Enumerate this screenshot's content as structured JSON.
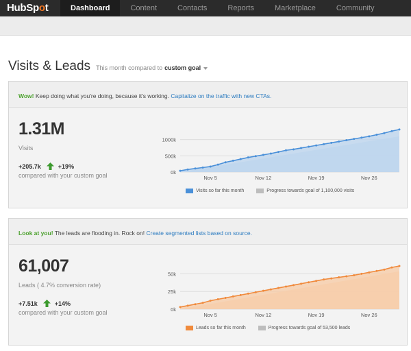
{
  "nav": {
    "logo_pre": "HubSp",
    "logo_o": "o",
    "logo_post": "t",
    "items": [
      {
        "label": "Dashboard",
        "active": true
      },
      {
        "label": "Content"
      },
      {
        "label": "Contacts"
      },
      {
        "label": "Reports"
      },
      {
        "label": "Marketplace"
      },
      {
        "label": "Community"
      }
    ]
  },
  "header": {
    "title": "Visits & Leads",
    "subtitle": "This month compared to",
    "goal": "custom goal"
  },
  "visits": {
    "banner_strong": "Wow!",
    "banner_text": " Keep doing what you're doing, because it's working. ",
    "banner_link": "Capitalize on the traffic with new CTAs.",
    "value": "1.31M",
    "label": "Visits",
    "delta_abs": "+205.7k",
    "delta_pct": "+19%",
    "compare": "compared with your custom goal",
    "legend_actual": "Visits so far this month",
    "legend_goal": "Progress towards goal of 1,100,000 visits"
  },
  "leads": {
    "banner_strong": "Look at you!",
    "banner_text": " The leads are flooding in. Rock on! ",
    "banner_link": "Create segmented lists based on source.",
    "value": "61,007",
    "label": "Leads ( 4.7% conversion rate)",
    "delta_abs": "+7.51k",
    "delta_pct": "+14%",
    "compare": "compared with your custom goal",
    "legend_actual": "Leads so far this month",
    "legend_goal": "Progress towards goal of 53,500 leads"
  },
  "colors": {
    "visits_line": "#4a90d9",
    "visits_fill": "#b9d3ee",
    "visits_goal_fill": "#cfdff0",
    "leads_line": "#f08a3c",
    "leads_fill": "#f7c9a3",
    "leads_goal_fill": "#f5dcc8",
    "goal_swatch": "#bdbdbd",
    "up_arrow": "#3c9a2e"
  },
  "chart_data": [
    {
      "type": "area",
      "series_name": "Visits so far this month",
      "x_ticks": [
        "Nov 5",
        "Nov 12",
        "Nov 19",
        "Nov 26"
      ],
      "y_ticks": [
        "0k",
        "500k",
        "1000k"
      ],
      "ylim": [
        0,
        1350000
      ],
      "x_days": [
        1,
        2,
        3,
        4,
        5,
        6,
        7,
        8,
        9,
        10,
        11,
        12,
        13,
        14,
        15,
        16,
        17,
        18,
        19,
        20,
        21,
        22,
        23,
        24,
        25,
        26,
        27,
        28,
        29,
        30
      ],
      "values": [
        40000,
        80000,
        110000,
        140000,
        170000,
        230000,
        300000,
        350000,
        400000,
        450000,
        490000,
        530000,
        570000,
        620000,
        670000,
        700000,
        740000,
        780000,
        820000,
        860000,
        900000,
        940000,
        980000,
        1020000,
        1060000,
        1100000,
        1150000,
        1200000,
        1260000,
        1310000
      ],
      "goal_start": 0,
      "goal_end": 1100000
    },
    {
      "type": "area",
      "series_name": "Leads so far this month",
      "x_ticks": [
        "Nov 5",
        "Nov 12",
        "Nov 19",
        "Nov 26"
      ],
      "y_ticks": [
        "0k",
        "25k",
        "50k"
      ],
      "ylim": [
        0,
        62000
      ],
      "x_days": [
        1,
        2,
        3,
        4,
        5,
        6,
        7,
        8,
        9,
        10,
        11,
        12,
        13,
        14,
        15,
        16,
        17,
        18,
        19,
        20,
        21,
        22,
        23,
        24,
        25,
        26,
        27,
        28,
        29,
        30
      ],
      "values": [
        3000,
        5000,
        7000,
        9000,
        12000,
        14000,
        16000,
        18000,
        20000,
        22000,
        24000,
        26000,
        28000,
        30000,
        32000,
        34000,
        36000,
        38000,
        40000,
        42000,
        43500,
        45000,
        46500,
        48000,
        50000,
        52000,
        54000,
        56000,
        59000,
        61007
      ],
      "goal_start": 0,
      "goal_end": 53500
    }
  ]
}
